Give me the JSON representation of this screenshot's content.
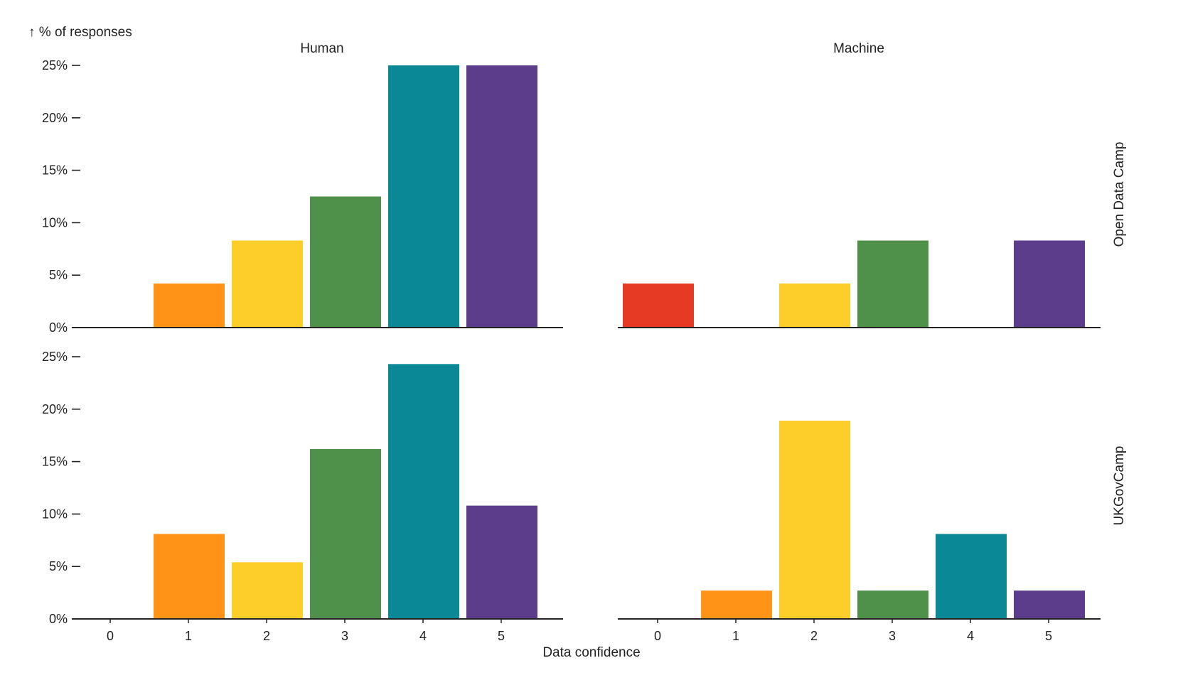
{
  "chart_data": {
    "type": "bar",
    "title": "",
    "xlabel": "Data confidence",
    "ylabel": "↑ % of responses",
    "ylim": [
      0,
      25
    ],
    "y_ticks": [
      "0%",
      "5%",
      "10%",
      "15%",
      "20%",
      "25%"
    ],
    "y_tick_values": [
      0,
      5,
      10,
      15,
      20,
      25
    ],
    "categories": [
      "0",
      "1",
      "2",
      "3",
      "4",
      "5"
    ],
    "category_colors": [
      "#e63a25",
      "#ff9318",
      "#fdcd2a",
      "#4f914a",
      "#0a8896",
      "#5c3d8c"
    ],
    "columns": [
      "Human",
      "Machine"
    ],
    "rows": [
      "Open Data Camp",
      "UKGovCamp"
    ],
    "panels": [
      {
        "row": "Open Data Camp",
        "column": "Human",
        "values": [
          0,
          4.2,
          8.3,
          12.5,
          25.0,
          25.0
        ]
      },
      {
        "row": "Open Data Camp",
        "column": "Machine",
        "values": [
          4.2,
          0,
          4.2,
          8.3,
          0,
          8.3
        ]
      },
      {
        "row": "UKGovCamp",
        "column": "Human",
        "values": [
          0,
          8.1,
          5.4,
          16.2,
          24.3,
          10.8
        ]
      },
      {
        "row": "UKGovCamp",
        "column": "Machine",
        "values": [
          0,
          2.7,
          18.9,
          2.7,
          8.1,
          2.7
        ]
      }
    ],
    "grid": false,
    "legend": "none"
  }
}
